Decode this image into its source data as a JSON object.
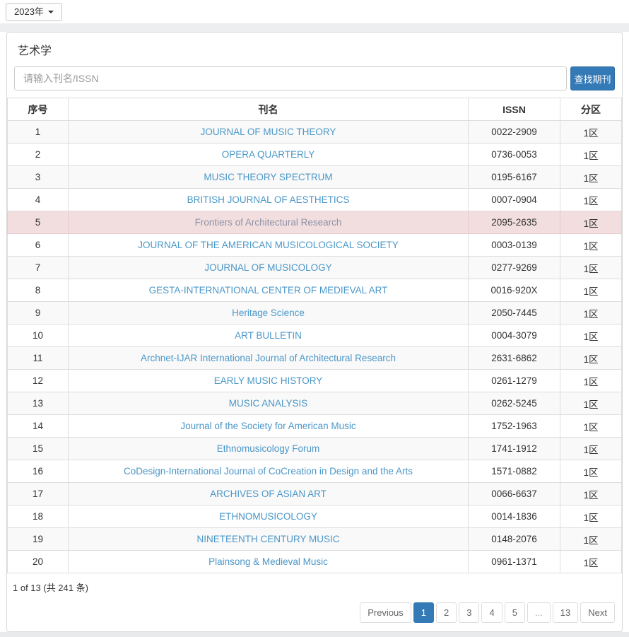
{
  "toolbar": {
    "year_selector_label": "2023年"
  },
  "panel": {
    "title": "艺术学"
  },
  "search": {
    "placeholder": "请输入刊名/ISSN",
    "value": "",
    "button_label": "查找期刊"
  },
  "table": {
    "headers": {
      "index": "序号",
      "name": "刊名",
      "issn": "ISSN",
      "zone": "分区"
    },
    "rows": [
      {
        "index": "1",
        "name": "JOURNAL OF MUSIC THEORY",
        "issn": "0022-2909",
        "zone": "1区",
        "highlighted": false
      },
      {
        "index": "2",
        "name": "OPERA QUARTERLY",
        "issn": "0736-0053",
        "zone": "1区",
        "highlighted": false
      },
      {
        "index": "3",
        "name": "MUSIC THEORY SPECTRUM",
        "issn": "0195-6167",
        "zone": "1区",
        "highlighted": false
      },
      {
        "index": "4",
        "name": "BRITISH JOURNAL OF AESTHETICS",
        "issn": "0007-0904",
        "zone": "1区",
        "highlighted": false
      },
      {
        "index": "5",
        "name": "Frontiers of Architectural Research",
        "issn": "2095-2635",
        "zone": "1区",
        "highlighted": true
      },
      {
        "index": "6",
        "name": "JOURNAL OF THE AMERICAN MUSICOLOGICAL SOCIETY",
        "issn": "0003-0139",
        "zone": "1区",
        "highlighted": false
      },
      {
        "index": "7",
        "name": "JOURNAL OF MUSICOLOGY",
        "issn": "0277-9269",
        "zone": "1区",
        "highlighted": false
      },
      {
        "index": "8",
        "name": "GESTA-INTERNATIONAL CENTER OF MEDIEVAL ART",
        "issn": "0016-920X",
        "zone": "1区",
        "highlighted": false
      },
      {
        "index": "9",
        "name": "Heritage Science",
        "issn": "2050-7445",
        "zone": "1区",
        "highlighted": false
      },
      {
        "index": "10",
        "name": "ART BULLETIN",
        "issn": "0004-3079",
        "zone": "1区",
        "highlighted": false
      },
      {
        "index": "11",
        "name": "Archnet-IJAR International Journal of Architectural Research",
        "issn": "2631-6862",
        "zone": "1区",
        "highlighted": false
      },
      {
        "index": "12",
        "name": "EARLY MUSIC HISTORY",
        "issn": "0261-1279",
        "zone": "1区",
        "highlighted": false
      },
      {
        "index": "13",
        "name": "MUSIC ANALYSIS",
        "issn": "0262-5245",
        "zone": "1区",
        "highlighted": false
      },
      {
        "index": "14",
        "name": "Journal of the Society for American Music",
        "issn": "1752-1963",
        "zone": "1区",
        "highlighted": false
      },
      {
        "index": "15",
        "name": "Ethnomusicology Forum",
        "issn": "1741-1912",
        "zone": "1区",
        "highlighted": false
      },
      {
        "index": "16",
        "name": "CoDesign-International Journal of CoCreation in Design and the Arts",
        "issn": "1571-0882",
        "zone": "1区",
        "highlighted": false
      },
      {
        "index": "17",
        "name": "ARCHIVES OF ASIAN ART",
        "issn": "0066-6637",
        "zone": "1区",
        "highlighted": false
      },
      {
        "index": "18",
        "name": "ETHNOMUSICOLOGY",
        "issn": "0014-1836",
        "zone": "1区",
        "highlighted": false
      },
      {
        "index": "19",
        "name": "NINETEENTH CENTURY MUSIC",
        "issn": "0148-2076",
        "zone": "1区",
        "highlighted": false
      },
      {
        "index": "20",
        "name": "Plainsong & Medieval Music",
        "issn": "0961-1371",
        "zone": "1区",
        "highlighted": false
      }
    ]
  },
  "footer": {
    "page_info": "1 of 13 (共 241 条)"
  },
  "pagination": {
    "items": [
      {
        "key": "previous",
        "label": "Previous",
        "active": false,
        "disabled": false
      },
      {
        "key": "1",
        "label": "1",
        "active": true,
        "disabled": false
      },
      {
        "key": "2",
        "label": "2",
        "active": false,
        "disabled": false
      },
      {
        "key": "3",
        "label": "3",
        "active": false,
        "disabled": false
      },
      {
        "key": "4",
        "label": "4",
        "active": false,
        "disabled": false
      },
      {
        "key": "5",
        "label": "5",
        "active": false,
        "disabled": false
      },
      {
        "key": "ellipsis",
        "label": "...",
        "active": false,
        "disabled": true
      },
      {
        "key": "13",
        "label": "13",
        "active": false,
        "disabled": false
      },
      {
        "key": "next",
        "label": "Next",
        "active": false,
        "disabled": false
      }
    ]
  },
  "colors": {
    "accent": "#337ab7",
    "link": "#4a97c8",
    "highlight_row_bg": "#f2dede",
    "highlight_link": "#8d93a8"
  }
}
